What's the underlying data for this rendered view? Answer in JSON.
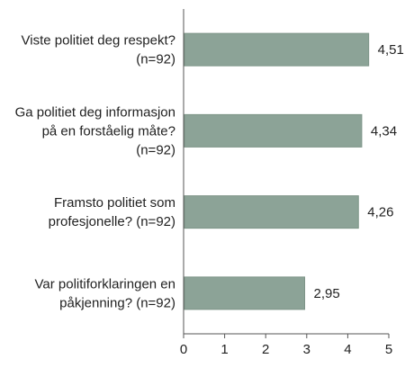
{
  "chart_data": {
    "type": "bar",
    "orientation": "horizontal",
    "title": "",
    "xlabel": "",
    "ylabel": "",
    "categories": [
      [
        "Viste politiet deg respekt?",
        "(n=92)"
      ],
      [
        "Ga politiet deg informasjon",
        "på en forståelig måte?",
        "(n=92)"
      ],
      [
        "Framsto politiet som",
        "profesjonelle? (n=92)"
      ],
      [
        "Var politiforklaringen en",
        "påkjenning? (n=92)"
      ]
    ],
    "values": [
      4.51,
      4.34,
      4.26,
      2.95
    ],
    "value_labels": [
      "4,51",
      "4,34",
      "4,26",
      "2,95"
    ],
    "xlim": [
      0,
      5
    ],
    "xticks": [
      0,
      1,
      2,
      3,
      4,
      5
    ],
    "xtick_labels": [
      "0",
      "1",
      "2",
      "3",
      "4",
      "5"
    ],
    "grid": false,
    "legend": "none",
    "bar_color": "#8ca397",
    "bar_stroke": "#7d9487",
    "axis_color": "#555555"
  }
}
